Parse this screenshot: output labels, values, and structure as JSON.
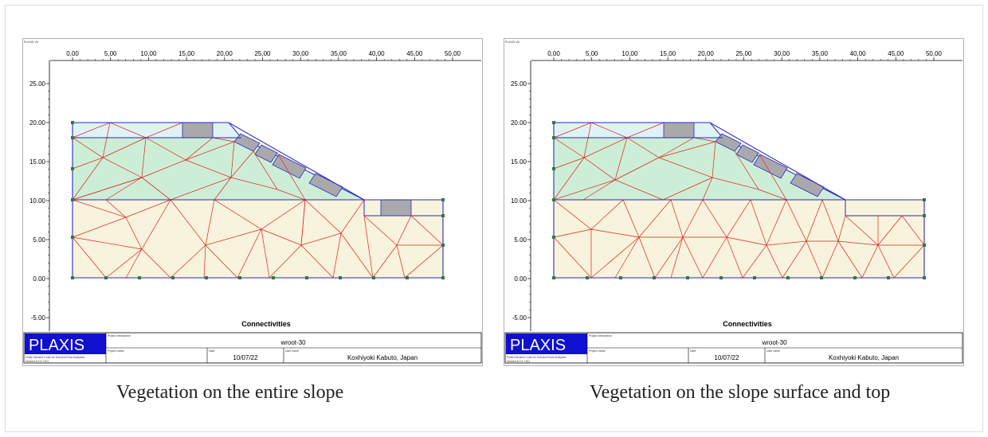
{
  "figure": {
    "panels": [
      {
        "id": "left",
        "corner_label": "PLAXIS V8",
        "x_ticks": [
          "0,00",
          "5,00",
          "10,00",
          "15,00",
          "20,00",
          "25,00",
          "30,00",
          "35,00",
          "40,00",
          "45,00",
          "50,00"
        ],
        "y_ticks": [
          "25.00",
          "20.00",
          "15.00",
          "10.00",
          "5.00",
          "0.00",
          "-5.00"
        ],
        "plot_title": "Connectivities",
        "title_block": {
          "logo": "PLAXIS",
          "logo_sub": "Finite Element Code for Soil and Rock Analyses",
          "version": "Version 8.2.4.7101",
          "project_description_label": "Project description",
          "project_description": "wroot-30",
          "project_name_label": "Project name",
          "date_label": "Date",
          "date": "10/07/22",
          "user_name_label": "User name",
          "user_name": "Koxhiyoki Kabuto, Japan"
        },
        "caption": "Vegetation on the entire slope"
      },
      {
        "id": "right",
        "corner_label": "PLAXIS V8",
        "x_ticks": [
          "0,00",
          "5,00",
          "10,00",
          "15,00",
          "20,00",
          "25,00",
          "30,00",
          "35,00",
          "40,00",
          "45,00",
          "50,00"
        ],
        "y_ticks": [
          "25.00",
          "20.00",
          "15.00",
          "10.00",
          "5.00",
          "0.00",
          "-5.00"
        ],
        "plot_title": "Connectivities",
        "title_block": {
          "logo": "PLAXIS",
          "logo_sub": "Finite Element Code for Soil and Rock Analyses",
          "version": "Version 8.2.4.7101",
          "project_description_label": "Project description",
          "project_description": "wroot-30",
          "project_name_label": "Project name",
          "date_label": "Date",
          "date": "10/07/22",
          "user_name_label": "User name",
          "user_name": "Koxhiyoki Kabuto, Japan"
        },
        "caption": "Vegetation on the slope surface and top"
      }
    ]
  },
  "colors": {
    "top_layer": "#dff3f7",
    "mid_layer": "#cdeed6",
    "base_layer": "#f8f3dc",
    "vegetation_block": "#a9a9ad",
    "mesh_line": "#e02020",
    "boundary_line": "#2a2abf",
    "node": "#2f7a3a",
    "logo_bg": "#1010d0"
  }
}
